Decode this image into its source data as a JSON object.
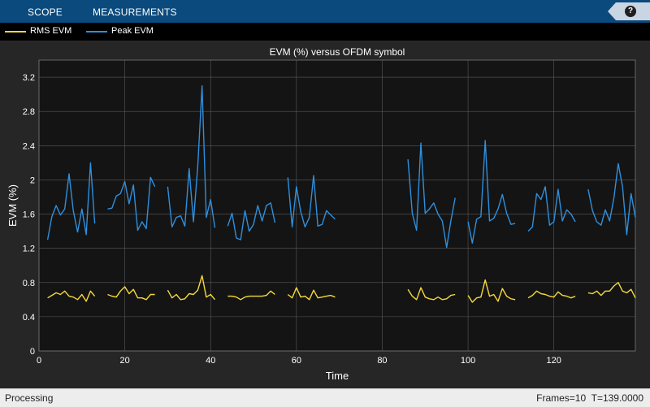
{
  "toolbar": {
    "tabs": [
      "SCOPE",
      "MEASUREMENTS"
    ],
    "help_label": "?"
  },
  "colors": {
    "rms": "#f5d93a",
    "peak": "#2f8fdc",
    "background": "#141414",
    "grid": "#5a5a5a",
    "text": "#ffffff"
  },
  "legend": [
    {
      "name": "RMS EVM",
      "color": "#f5d93a"
    },
    {
      "name": "Peak EVM",
      "color": "#2f8fdc"
    }
  ],
  "chart_data": {
    "type": "line",
    "title": "EVM (%) versus OFDM symbol",
    "xlabel": "Time",
    "ylabel": "EVM (%)",
    "xlim": [
      0,
      139
    ],
    "ylim": [
      0,
      3.4
    ],
    "xticks": [
      0,
      20,
      40,
      60,
      80,
      100,
      120
    ],
    "yticks": [
      0,
      0.4,
      0.8,
      1.2,
      1.6,
      2,
      2.4,
      2.8,
      3.2
    ],
    "ytick_labels": [
      "0",
      "0.4",
      "0.8",
      "1.2",
      "1.6",
      "2",
      "2.4",
      "2.8",
      "3.2"
    ],
    "grid": true,
    "legend_position": "top-left",
    "series": [
      {
        "name": "RMS EVM",
        "segments": [
          {
            "x": [
              2,
              3,
              4,
              5,
              6,
              7,
              8,
              9,
              10,
              11,
              12,
              13
            ],
            "y": [
              0.62,
              0.65,
              0.68,
              0.66,
              0.7,
              0.64,
              0.63,
              0.6,
              0.66,
              0.58,
              0.7,
              0.64
            ]
          },
          {
            "x": [
              16,
              17,
              18,
              19,
              20,
              21,
              22,
              23,
              24,
              25,
              26,
              27
            ],
            "y": [
              0.66,
              0.64,
              0.63,
              0.7,
              0.75,
              0.67,
              0.72,
              0.62,
              0.62,
              0.6,
              0.66,
              0.66
            ]
          },
          {
            "x": [
              30,
              31,
              32,
              33,
              34,
              35,
              36,
              37,
              38,
              39,
              40,
              41
            ],
            "y": [
              0.71,
              0.62,
              0.66,
              0.6,
              0.61,
              0.67,
              0.66,
              0.71,
              0.88,
              0.63,
              0.66,
              0.6
            ]
          },
          {
            "x": [
              44,
              45,
              46,
              47,
              48,
              49,
              50,
              51,
              52,
              53,
              54,
              55
            ],
            "y": [
              0.64,
              0.64,
              0.63,
              0.6,
              0.63,
              0.64,
              0.64,
              0.64,
              0.64,
              0.65,
              0.7,
              0.66
            ]
          },
          {
            "x": [
              58,
              59,
              60,
              61,
              62,
              63,
              64,
              65,
              66,
              67,
              68,
              69
            ],
            "y": [
              0.66,
              0.62,
              0.74,
              0.63,
              0.64,
              0.6,
              0.71,
              0.62,
              0.63,
              0.64,
              0.65,
              0.63
            ]
          },
          {
            "x": [
              86,
              87,
              88,
              89,
              90,
              91,
              92,
              93,
              94,
              95,
              96,
              97
            ],
            "y": [
              0.72,
              0.64,
              0.6,
              0.74,
              0.63,
              0.61,
              0.6,
              0.63,
              0.6,
              0.61,
              0.65,
              0.66
            ]
          },
          {
            "x": [
              100,
              101,
              102,
              103,
              104,
              105,
              106,
              107,
              108,
              109,
              110,
              111
            ],
            "y": [
              0.65,
              0.57,
              0.62,
              0.63,
              0.83,
              0.64,
              0.66,
              0.58,
              0.73,
              0.64,
              0.61,
              0.6
            ]
          },
          {
            "x": [
              114,
              115,
              116,
              117,
              118,
              119,
              120,
              121,
              122,
              123,
              124,
              125
            ],
            "y": [
              0.62,
              0.65,
              0.7,
              0.67,
              0.66,
              0.64,
              0.63,
              0.69,
              0.65,
              0.64,
              0.62,
              0.64
            ]
          },
          {
            "x": [
              128,
              129,
              130,
              131,
              132,
              133,
              134,
              135,
              136,
              137,
              138,
              139
            ],
            "y": [
              0.68,
              0.67,
              0.7,
              0.65,
              0.7,
              0.7,
              0.76,
              0.8,
              0.7,
              0.68,
              0.72,
              0.62
            ]
          }
        ]
      },
      {
        "name": "Peak EVM",
        "segments": [
          {
            "x": [
              2,
              3,
              4,
              5,
              6,
              7,
              8,
              9,
              10,
              11,
              12,
              13
            ],
            "y": [
              1.3,
              1.57,
              1.7,
              1.59,
              1.66,
              2.07,
              1.64,
              1.39,
              1.66,
              1.36,
              2.2,
              1.49
            ]
          },
          {
            "x": [
              16,
              17,
              18,
              19,
              20,
              21,
              22,
              23,
              24,
              25,
              26,
              27
            ],
            "y": [
              1.66,
              1.67,
              1.81,
              1.84,
              1.98,
              1.72,
              1.94,
              1.41,
              1.51,
              1.43,
              2.03,
              1.92
            ]
          },
          {
            "x": [
              30,
              31,
              32,
              33,
              34,
              35,
              36,
              37,
              38,
              39,
              40,
              41
            ],
            "y": [
              1.92,
              1.45,
              1.56,
              1.58,
              1.46,
              2.13,
              1.51,
              2.16,
              3.1,
              1.56,
              1.77,
              1.44
            ]
          },
          {
            "x": [
              44,
              45,
              46,
              47,
              48,
              49,
              50,
              51,
              52,
              53,
              54,
              55
            ],
            "y": [
              1.46,
              1.61,
              1.32,
              1.3,
              1.64,
              1.4,
              1.48,
              1.7,
              1.52,
              1.7,
              1.73,
              1.5
            ]
          },
          {
            "x": [
              58,
              59,
              60,
              61,
              62,
              63,
              64,
              65,
              66,
              67,
              68,
              69
            ],
            "y": [
              2.03,
              1.45,
              1.92,
              1.63,
              1.45,
              1.56,
              2.05,
              1.46,
              1.48,
              1.64,
              1.59,
              1.54
            ]
          },
          {
            "x": [
              86,
              87,
              88,
              89,
              90,
              91,
              92,
              93,
              94,
              95,
              96,
              97
            ],
            "y": [
              2.24,
              1.61,
              1.41,
              2.43,
              1.61,
              1.66,
              1.73,
              1.6,
              1.52,
              1.21,
              1.52,
              1.79
            ]
          },
          {
            "x": [
              100,
              101,
              102,
              103,
              104,
              105,
              106,
              107,
              108,
              109,
              110,
              111
            ],
            "y": [
              1.51,
              1.26,
              1.54,
              1.57,
              2.46,
              1.52,
              1.55,
              1.66,
              1.83,
              1.61,
              1.48,
              1.49
            ]
          },
          {
            "x": [
              114,
              115,
              116,
              117,
              118,
              119,
              120,
              121,
              122,
              123,
              124,
              125
            ],
            "y": [
              1.4,
              1.45,
              1.84,
              1.77,
              1.92,
              1.47,
              1.51,
              1.89,
              1.52,
              1.65,
              1.6,
              1.51
            ]
          },
          {
            "x": [
              128,
              129,
              130,
              131,
              132,
              133,
              134,
              135,
              136,
              137,
              138,
              139
            ],
            "y": [
              1.89,
              1.64,
              1.51,
              1.47,
              1.65,
              1.52,
              1.79,
              2.19,
              1.92,
              1.36,
              1.84,
              1.56
            ]
          }
        ]
      }
    ]
  },
  "status": {
    "left": "Processing",
    "frames": "Frames=10",
    "time": "T=139.0000"
  }
}
